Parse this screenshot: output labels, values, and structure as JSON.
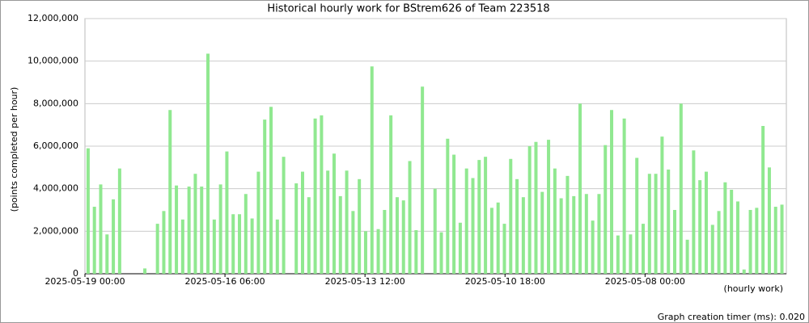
{
  "chart_data": {
    "type": "bar",
    "title": "Historical hourly work for BStrem626 of Team 223518",
    "y_label": "(points completed per hour)",
    "x_label": "(hourly work)",
    "footer": "Graph creation timer (ms): 0.020",
    "color": "#90e890",
    "grid": true,
    "categories": [
      null,
      null,
      null,
      null,
      null,
      null,
      null,
      null,
      null,
      null,
      null,
      null,
      null,
      null,
      null,
      null,
      null,
      null,
      null,
      null,
      null,
      null,
      null,
      null,
      null,
      null,
      null,
      null,
      null,
      null,
      null,
      null,
      null,
      null,
      null,
      null,
      null,
      null,
      null,
      null,
      null,
      null,
      null,
      null,
      null,
      null,
      null,
      null,
      null,
      null,
      null,
      null,
      null,
      null,
      null,
      null,
      null,
      null,
      null,
      null,
      null,
      null,
      null,
      null,
      null,
      null,
      null,
      null,
      null,
      null,
      null,
      null,
      null,
      null,
      null,
      null,
      null,
      null,
      null,
      null,
      null,
      null,
      null,
      null,
      null,
      null,
      null,
      null,
      null,
      null,
      null,
      null,
      null,
      null,
      null,
      null,
      null,
      null,
      null,
      null,
      null,
      null,
      null,
      null,
      null,
      null,
      null,
      null,
      null,
      null,
      null
    ],
    "values": [
      5900000,
      3150000,
      4200000,
      1850000,
      3500000,
      4950000,
      0,
      0,
      0,
      250000,
      0,
      2350000,
      2950000,
      7700000,
      4150000,
      2550000,
      4100000,
      4700000,
      4100000,
      10350000,
      2550000,
      4200000,
      5750000,
      2800000,
      2800000,
      3750000,
      2600000,
      4800000,
      7250000,
      7850000,
      2550000,
      5500000,
      0,
      4250000,
      4800000,
      3600000,
      7300000,
      7450000,
      4850000,
      5650000,
      3650000,
      4850000,
      2950000,
      4450000,
      2000000,
      9750000,
      2100000,
      3000000,
      7450000,
      3600000,
      3450000,
      5300000,
      2050000,
      8800000,
      0,
      4000000,
      1950000,
      6350000,
      5600000,
      2400000,
      4950000,
      4500000,
      5350000,
      5500000,
      3100000,
      3350000,
      2350000,
      5400000,
      4450000,
      3600000,
      6000000,
      6200000,
      3850000,
      6300000,
      4950000,
      3550000,
      4600000,
      3650000,
      8000000,
      3750000,
      2500000,
      3750000,
      6050000,
      7700000,
      1800000,
      7300000,
      1850000,
      5450000,
      2350000,
      4700000,
      4700000,
      6450000,
      4900000,
      3000000,
      8000000,
      1600000,
      5800000,
      4400000,
      4800000,
      2300000,
      2950000,
      4300000,
      3950000,
      3400000,
      200000,
      3000000,
      3100000,
      6950000,
      5000000,
      3150000,
      3250000
    ],
    "xlim": [
      0,
      111.2
    ],
    "xticks": [
      {
        "value": 0,
        "label": "2025-05-19 00:00"
      },
      {
        "value": 22.2,
        "label": "2025-05-16 06:00"
      },
      {
        "value": 44.4,
        "label": "2025-05-13 12:00"
      },
      {
        "value": 66.6,
        "label": "2025-05-10 18:00"
      },
      {
        "value": 88.8,
        "label": "2025-05-08 00:00"
      }
    ],
    "ylim": [
      0,
      12000000
    ],
    "yticks": [
      {
        "value": 0,
        "label": "0"
      },
      {
        "value": 2000000,
        "label": "2,000,000"
      },
      {
        "value": 4000000,
        "label": "4,000,000"
      },
      {
        "value": 6000000,
        "label": "6,000,000"
      },
      {
        "value": 8000000,
        "label": "8,000,000"
      },
      {
        "value": 10000000,
        "label": "10,000,000"
      },
      {
        "value": 12000000,
        "label": "12,000,000"
      }
    ]
  }
}
